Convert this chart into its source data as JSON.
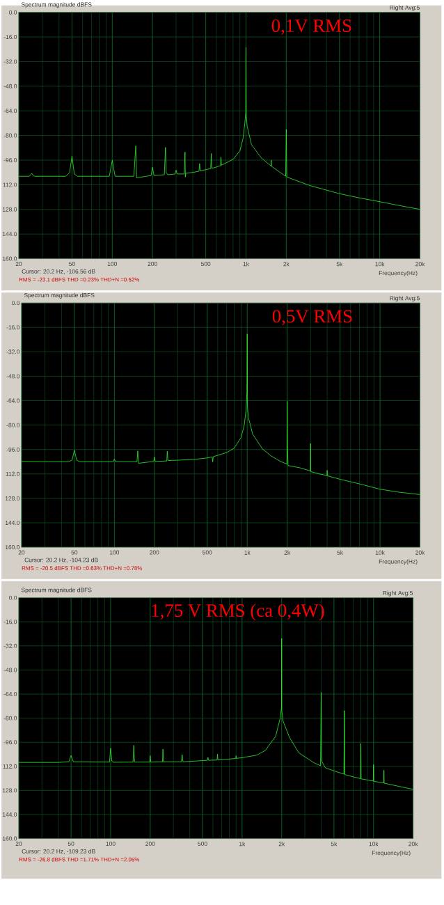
{
  "chart_data": [
    {
      "type": "line",
      "title": "Spectrum magnitude dBFS",
      "xlabel": "Frequency(Hz)",
      "log": "x",
      "grid": true,
      "color": "#33ee33",
      "annotations": [
        "0,1V RMS",
        "Right  Avg:5",
        "Cursor:  20.2 Hz, -106.56 dB",
        "RMS =  -23.1 dBFS   THD =0.23%   THD+N =0.52%"
      ],
      "xlim": [
        20,
        20000
      ],
      "ylim": [
        -160,
        0
      ],
      "xticks": [
        20,
        50,
        100,
        200,
        500,
        {
          "value": 1000,
          "label": "1k"
        },
        {
          "value": 2000,
          "label": "2k"
        },
        {
          "value": 5000,
          "label": "5k"
        },
        {
          "value": 10000,
          "label": "10k"
        },
        {
          "value": 20000,
          "label": "20k"
        }
      ],
      "yticks": [
        {
          "value": 0,
          "label": "0.0"
        },
        {
          "value": -16,
          "label": "-16.0"
        },
        {
          "value": -32,
          "label": "-32.0"
        },
        {
          "value": -48,
          "label": "-48.0"
        },
        {
          "value": -64,
          "label": "-64.0"
        },
        {
          "value": -80,
          "label": "-80.0"
        },
        {
          "value": -96,
          "label": "-96.0"
        },
        {
          "value": -112,
          "label": "112.0"
        },
        {
          "value": -128,
          "label": "128.0"
        },
        {
          "value": -144,
          "label": "144.0"
        },
        {
          "value": -160,
          "label": "160.0"
        }
      ],
      "x": [
        20,
        24,
        25,
        26,
        45,
        48,
        50,
        52,
        55,
        95,
        100,
        105,
        145,
        150,
        152,
        195,
        200,
        205,
        245,
        250,
        253,
        260,
        295,
        300,
        305,
        345,
        350,
        352,
        355,
        400,
        445,
        450,
        455,
        545,
        550,
        555,
        600,
        645,
        650,
        655,
        800,
        900,
        950,
        980,
        995,
        1000,
        1005,
        1020,
        1100,
        1300,
        1500,
        1540,
        1545,
        1550,
        1800,
        1980,
        2000,
        2020,
        3000,
        4000,
        5000,
        7000,
        10000,
        14000,
        20000
      ],
      "values": [
        -106.5,
        -106.5,
        -104.6,
        -106.5,
        -106.5,
        -104,
        -93.3,
        -105,
        -106.5,
        -106.5,
        -96.2,
        -106.5,
        -106.5,
        -86.7,
        -107.5,
        -106,
        -100.7,
        -106,
        -105.5,
        -87.7,
        -104,
        -105.5,
        -105,
        -102.5,
        -105,
        -105,
        -90.8,
        -107,
        -104.5,
        -104,
        -103.2,
        -98.3,
        -103,
        -101.5,
        -91.7,
        -101.3,
        -100.5,
        -99.5,
        -94,
        -99.3,
        -95.5,
        -90,
        -82,
        -72,
        -65,
        -22.8,
        -67,
        -74,
        -86,
        -94.5,
        -99,
        -99.8,
        -96,
        -100,
        -104,
        -106.5,
        -76,
        -107,
        -112.5,
        -115.5,
        -117.8,
        -120.5,
        -123,
        -125.5,
        -128
      ]
    },
    {
      "type": "line",
      "title": "Spectrum magnitude dBFS",
      "xlabel": "Frequency(Hz)",
      "log": "x",
      "grid": true,
      "color": "#33ee33",
      "annotations": [
        "0,5V RMS",
        "Right  Avg:5",
        "Cursor:  20.2 Hz, -104.23 dB",
        "RMS =  -20.5 dBFS   THD =0.63%   THD+N =0.78%"
      ],
      "xlim": [
        20,
        20000
      ],
      "ylim": [
        -160,
        0
      ],
      "xticks": [
        20,
        50,
        100,
        200,
        500,
        {
          "value": 1000,
          "label": "1k"
        },
        {
          "value": 2000,
          "label": "2k"
        },
        {
          "value": 5000,
          "label": "5k"
        },
        {
          "value": 10000,
          "label": "10k"
        },
        {
          "value": 20000,
          "label": "20k"
        }
      ],
      "yticks": [
        {
          "value": 0,
          "label": "0.0"
        },
        {
          "value": -16,
          "label": "-16.0"
        },
        {
          "value": -32,
          "label": "-32.0"
        },
        {
          "value": -48,
          "label": "-48.0"
        },
        {
          "value": -64,
          "label": "-64.0"
        },
        {
          "value": -80,
          "label": "-80.0"
        },
        {
          "value": -96,
          "label": "-96.0"
        },
        {
          "value": -112,
          "label": "112.0"
        },
        {
          "value": -128,
          "label": "128.0"
        },
        {
          "value": -144,
          "label": "144.0"
        },
        {
          "value": -160,
          "label": "160.0"
        }
      ],
      "x": [
        20,
        30,
        45,
        48,
        50,
        52,
        55,
        98,
        100,
        102,
        148,
        150,
        152,
        198,
        200,
        203,
        248,
        250,
        253,
        300,
        400,
        500,
        545,
        550,
        555,
        700,
        800,
        900,
        950,
        980,
        995,
        1000,
        1005,
        1020,
        1100,
        1300,
        1500,
        1800,
        1990,
        2000,
        2010,
        2030,
        2500,
        2990,
        3000,
        3010,
        3500,
        3990,
        4000,
        4010,
        5000,
        7000,
        10000,
        14000,
        20000
      ],
      "values": [
        -103.8,
        -104,
        -104,
        -103,
        -96.5,
        -103,
        -104,
        -104,
        -102.3,
        -104,
        -104,
        -96.9,
        -105,
        -103.8,
        -101,
        -103.8,
        -103.5,
        -97.2,
        -103.2,
        -103,
        -102.5,
        -101.5,
        -100.8,
        -104.1,
        -100.7,
        -98,
        -95,
        -88,
        -80,
        -70,
        -58.4,
        -20.3,
        -67.5,
        -75,
        -86,
        -95.5,
        -100,
        -104,
        -105.5,
        -64.4,
        -92.9,
        -106.5,
        -108,
        -110,
        -92,
        -110.5,
        -112,
        -113,
        -109.6,
        -113.2,
        -115.5,
        -118.5,
        -122,
        -124,
        -125.5
      ]
    },
    {
      "type": "line",
      "title": "Spectrum magnitude dBFS",
      "xlabel": "Frequency(Hz)",
      "log": "x",
      "grid": true,
      "color": "#33ee33",
      "annotations": [
        "1,75 V RMS (ca 0,4W)",
        "Right  Avg:5",
        "Cursor:  20.2 Hz, -109.23 dB",
        "RMS =  -26.8 dBFS   THD =1.71%   THD+N =2.05%"
      ],
      "xlim": [
        20,
        20000
      ],
      "ylim": [
        -160,
        0
      ],
      "xticks": [
        20,
        50,
        100,
        200,
        500,
        {
          "value": 1000,
          "label": "1k"
        },
        {
          "value": 2000,
          "label": "2k"
        },
        {
          "value": 5000,
          "label": "5k"
        },
        {
          "value": 10000,
          "label": "10k"
        },
        {
          "value": 20000,
          "label": "20k"
        }
      ],
      "yticks": [
        {
          "value": 0,
          "label": "0.0"
        },
        {
          "value": -16,
          "label": "-16.0"
        },
        {
          "value": -32,
          "label": "-32.0"
        },
        {
          "value": -48,
          "label": "-48.0"
        },
        {
          "value": -64,
          "label": "-64.0"
        },
        {
          "value": -80,
          "label": "-80.0"
        },
        {
          "value": -96,
          "label": "-96.0"
        },
        {
          "value": -112,
          "label": "112.0"
        },
        {
          "value": -128,
          "label": "128.0"
        },
        {
          "value": -144,
          "label": "144.0"
        },
        {
          "value": -160,
          "label": "160.0"
        }
      ],
      "x": [
        20,
        40,
        48,
        50,
        52,
        98,
        100,
        102,
        105,
        148,
        150,
        152,
        198,
        200,
        202,
        248,
        250,
        252,
        345,
        350,
        355,
        500,
        545,
        550,
        555,
        645,
        650,
        655,
        895,
        900,
        905,
        1000,
        1300,
        1500,
        1800,
        1950,
        1995,
        2000,
        2005,
        2050,
        2300,
        2700,
        3500,
        3950,
        4000,
        4030,
        4300,
        5000,
        5950,
        6000,
        6050,
        7950,
        8000,
        8050,
        9950,
        10000,
        10050,
        11950,
        12000,
        12050,
        15000,
        20000
      ],
      "values": [
        -109.4,
        -109.4,
        -109,
        -104.8,
        -109,
        -109.2,
        -99.9,
        -108.5,
        -109.3,
        -109.2,
        -98,
        -109.2,
        -109.2,
        -105,
        -109.2,
        -109,
        -100.6,
        -109,
        -109,
        -104.3,
        -109,
        -108.2,
        -108,
        -106.1,
        -108,
        -107.8,
        -103.9,
        -107.8,
        -106.8,
        -105,
        -106.7,
        -106.3,
        -104.5,
        -101.5,
        -92,
        -80,
        -72.6,
        -27,
        -75,
        -82,
        -93,
        -103,
        -109.5,
        -111.6,
        -62.9,
        -108.5,
        -113,
        -115,
        -117.2,
        -75,
        -117.5,
        -120.2,
        -96.9,
        -120.3,
        -121.8,
        -110.9,
        -122,
        -123,
        -114.6,
        -123.2,
        -125,
        -127.3
      ]
    }
  ]
}
